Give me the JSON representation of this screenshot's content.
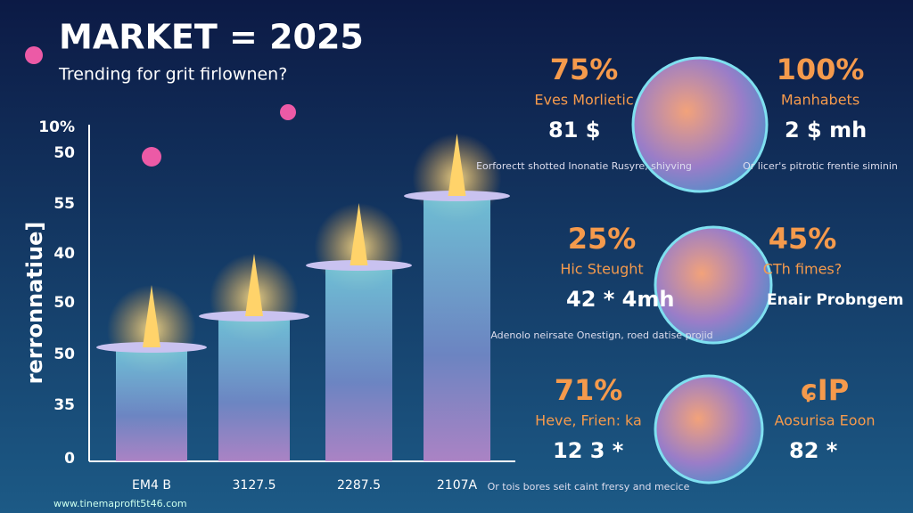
{
  "header": {
    "title": "MARKET = 2025",
    "subtitle": "Trending for grit firlownen?"
  },
  "axis": {
    "title": "rerronnatiue]",
    "ticks": [
      "10%",
      "50",
      "55",
      "40",
      "50",
      "50",
      "35",
      "0"
    ]
  },
  "bars": [
    {
      "label": "EM4 B"
    },
    {
      "label": "3127.5"
    },
    {
      "label": "2287.5"
    },
    {
      "label": "2107A"
    }
  ],
  "footer": "www.tinemaprofit5t46.com",
  "stats": [
    {
      "percent": "75%",
      "title": "Eves Morlietic",
      "figure": "81 $",
      "note": "Eorforectt shotted Inonatie Rusyre, shiyving"
    },
    {
      "percent": "100%",
      "title": "Manhabets",
      "figure": "2 $ mh",
      "note": "Or licer's pitrotic frentie siminin"
    },
    {
      "percent": "25%",
      "title": "Hic Steught",
      "figure": "42 * 4mh",
      "note": "Adenolo neirsate Onestign, roed datise projid"
    },
    {
      "percent": "45%",
      "title": "CTh fimes?",
      "figure": "Enair Probngem"
    },
    {
      "percent": "71%",
      "title": "Heve, Frien: ka",
      "figure": "12 3 *",
      "note": "Or tois bores seit caint frersy and mecice"
    },
    {
      "percent": "ɕIP",
      "title": "Aosurisa Eoon",
      "figure": "82 *"
    }
  ]
}
